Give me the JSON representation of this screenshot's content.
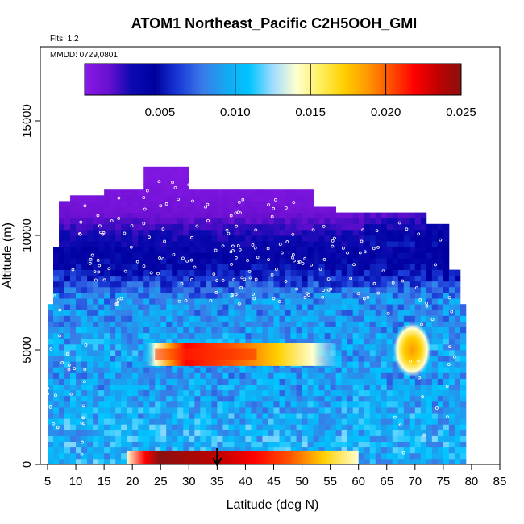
{
  "chart_data": {
    "type": "heatmap",
    "title": "ATOM1 Northeast_Pacific C2H5OOH_GMI",
    "subtitle_flights": "Flts: 1,2",
    "subtitle_dates": "MMDD: 0729,0801",
    "xlabel": "Latitude (deg N)",
    "ylabel": "Altitude (m)",
    "xlim": [
      5,
      85
    ],
    "ylim": [
      0,
      17500
    ],
    "xticks": [
      "5",
      "10",
      "15",
      "20",
      "25",
      "30",
      "35",
      "40",
      "45",
      "50",
      "55",
      "60",
      "65",
      "70",
      "75",
      "80",
      "85"
    ],
    "yticks": [
      "0",
      "5000",
      "10000",
      "15000"
    ],
    "colorbar": {
      "range": [
        0,
        0.025
      ],
      "ticks": [
        "0.005",
        "0.010",
        "0.015",
        "0.020",
        "0.025"
      ],
      "colors": [
        "#8a1ae8",
        "#6a0fd0",
        "#0a0ab0",
        "#0000a0",
        "#1a3ad8",
        "#3a7ae8",
        "#15a8f2",
        "#00c4ff",
        "#a0dcff",
        "#ffffd0",
        "#fff060",
        "#ffd000",
        "#ff9a00",
        "#ff5000",
        "#ff0000",
        "#c00000",
        "#8b1010"
      ]
    },
    "marker_latitude": 35,
    "lat_coverage_deg_n": [
      5,
      79
    ],
    "alt_coverage_m": [
      0,
      12900
    ],
    "profile": [
      {
        "alt_m": 12500,
        "value": 0.0005
      },
      {
        "alt_m": 11000,
        "value": 0.0012
      },
      {
        "alt_m": 10000,
        "value": 0.003
      },
      {
        "alt_m": 8500,
        "value": 0.005
      },
      {
        "alt_m": 7200,
        "value": 0.0085
      },
      {
        "alt_m": 6000,
        "value": 0.009
      },
      {
        "alt_m": 5000,
        "value": 0.0095
      },
      {
        "alt_m": 4000,
        "value": 0.009
      },
      {
        "alt_m": 2500,
        "value": 0.0095
      },
      {
        "alt_m": 1500,
        "value": 0.01
      },
      {
        "alt_m": 500,
        "value": 0.01
      }
    ],
    "features": [
      {
        "lat_range": [
          22,
          48
        ],
        "alt_m": 4800,
        "peak_value": 0.02
      },
      {
        "lat_range": [
          67,
          72
        ],
        "alt_m": 5000,
        "peak_value": 0.016
      },
      {
        "lat_range": [
          22,
          58
        ],
        "alt_m": 200,
        "peak_value": 0.024
      }
    ]
  }
}
